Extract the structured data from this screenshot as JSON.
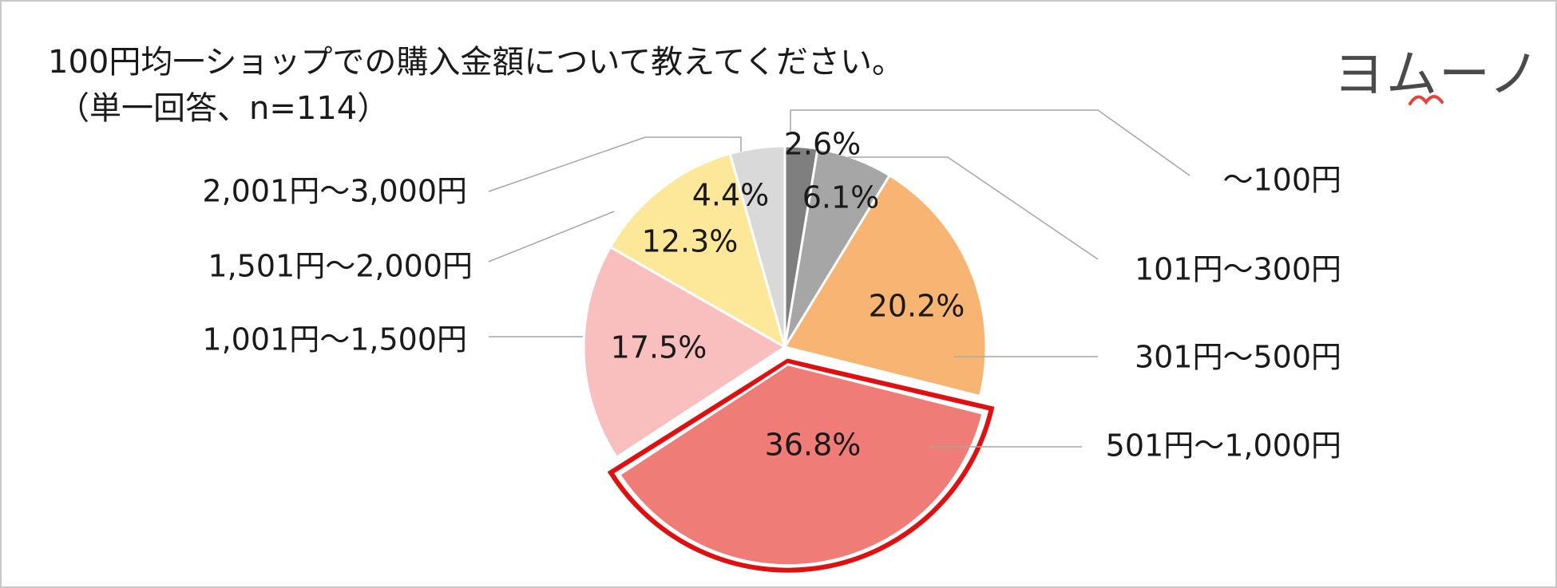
{
  "title": "100円均一ショップでの購入金額について教えてください。",
  "subtitle": "（単一回答、n=114）",
  "logo": {
    "text": "ヨムーノ",
    "accent_color": "#e8403a"
  },
  "highlight_color": "#e01010",
  "chart_data": {
    "type": "pie",
    "title": "100円均一ショップでの購入金額について教えてください。",
    "subtitle": "（単一回答、n=114）",
    "categories": [
      "～100円",
      "101円～300円",
      "301円～500円",
      "501円～1,000円",
      "1,001円～1,500円",
      "1,501円～2,000円",
      "2,001円～3,000円"
    ],
    "values": [
      2.6,
      6.1,
      20.2,
      36.8,
      17.5,
      12.3,
      4.4
    ],
    "value_labels": [
      "2.6%",
      "6.1%",
      "20.2%",
      "36.8%",
      "17.5%",
      "12.3%",
      "4.4%"
    ],
    "colors": [
      "#7f7f7f",
      "#a6a6a6",
      "#f8b472",
      "#f07c78",
      "#f9bebe",
      "#fde89a",
      "#d9d9d9"
    ],
    "highlighted_category": "501円～1,000円",
    "start": "12 o'clock",
    "direction": "clockwise"
  }
}
